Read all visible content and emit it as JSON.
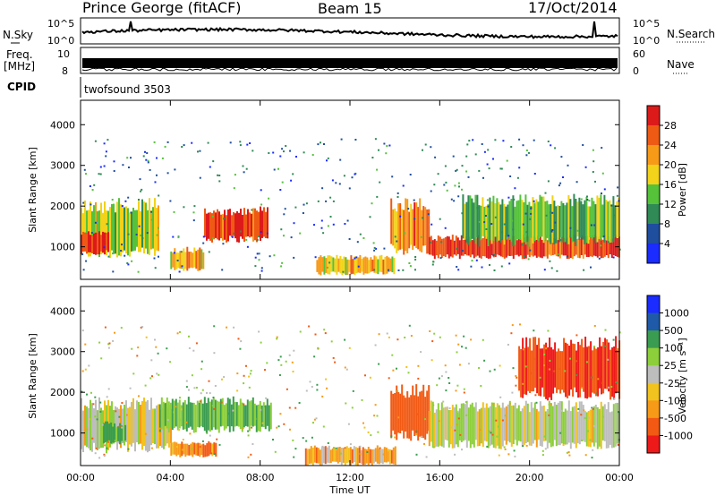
{
  "header": {
    "station": "Prince George (fitACF)",
    "beam": "Beam 15",
    "date": "17/Oct/2014"
  },
  "noise_panel": {
    "left_label": "N.Sky",
    "left_ticks": [
      "10^5",
      "10^0"
    ],
    "right_label": "N.Search",
    "right_ticks": [
      "10^5",
      "10^0"
    ]
  },
  "freq_panel": {
    "left_label_line1": "Freq.",
    "left_label_line2": "[MHz]",
    "left_ticks": [
      "10",
      "8"
    ],
    "right_label": "Nave",
    "right_ticks": [
      "60",
      "0"
    ]
  },
  "cpid": {
    "label": "CPID",
    "value": "twofsound 3503"
  },
  "colors": {
    "power_scale": [
      "#1a2cff",
      "#1f4e9e",
      "#2f8a55",
      "#55c23a",
      "#f2d21a",
      "#f79a18",
      "#ee5a14",
      "#dd1a1a"
    ],
    "velocity_scale": [
      "#ee1a1a",
      "#f25a14",
      "#f79a18",
      "#f2c21e",
      "#bdbdbd",
      "#8ccf3a",
      "#3a9c50",
      "#1f5aa8",
      "#1a2cff"
    ]
  },
  "chart_data": [
    {
      "type": "heatmap",
      "title": "Power",
      "ylabel": "Slant Range [km]",
      "xlabel": "",
      "ylim": [
        200,
        4600
      ],
      "yticks": [
        "1000",
        "2000",
        "3000",
        "4000"
      ],
      "xticks": [
        "00:00",
        "04:00",
        "08:00",
        "12:00",
        "16:00",
        "20:00",
        "00:00"
      ],
      "colorbar": {
        "label": "Power [dB]",
        "ticks": [
          "4",
          "8",
          "12",
          "16",
          "20",
          "24",
          "28"
        ],
        "range": [
          0,
          32
        ]
      },
      "regions": [
        {
          "t_start": 0.0,
          "t_end": 3.5,
          "range_low": 700,
          "range_high": 2200,
          "power_db": 16
        },
        {
          "t_start": 0.0,
          "t_end": 1.2,
          "range_low": 800,
          "range_high": 1400,
          "power_db": 28
        },
        {
          "t_start": 5.5,
          "t_end": 8.3,
          "range_low": 1100,
          "range_high": 2000,
          "power_db": 28
        },
        {
          "t_start": 4.0,
          "t_end": 5.5,
          "range_low": 400,
          "range_high": 1000,
          "power_db": 20
        },
        {
          "t_start": 10.5,
          "t_end": 14.0,
          "range_low": 300,
          "range_high": 800,
          "power_db": 20
        },
        {
          "t_start": 13.8,
          "t_end": 15.5,
          "range_low": 800,
          "range_high": 2200,
          "power_db": 24
        },
        {
          "t_start": 15.5,
          "t_end": 24.0,
          "range_low": 700,
          "range_high": 1300,
          "power_db": 28
        },
        {
          "t_start": 17.0,
          "t_end": 24.0,
          "range_low": 1000,
          "range_high": 2300,
          "power_db": 14
        }
      ]
    },
    {
      "type": "heatmap",
      "title": "Velocity",
      "ylabel": "Slant Range [km]",
      "xlabel": "Time UT",
      "ylim": [
        200,
        4600
      ],
      "yticks": [
        "1000",
        "2000",
        "3000",
        "4000"
      ],
      "xticks": [
        "00:00",
        "04:00",
        "08:00",
        "12:00",
        "16:00",
        "20:00",
        "00:00"
      ],
      "colorbar": {
        "label": "Velocity [m s⁻¹]",
        "ticks": [
          "1000",
          "500",
          "100",
          "25",
          "-25",
          "-100",
          "-500",
          "-1000"
        ],
        "range": [
          -1000,
          1000
        ]
      },
      "regions": [
        {
          "t_start": 0.0,
          "t_end": 4.0,
          "range_low": 500,
          "range_high": 1900,
          "velocity": 0
        },
        {
          "t_start": 1.0,
          "t_end": 2.0,
          "range_low": 700,
          "range_high": 1300,
          "velocity": 150
        },
        {
          "t_start": 3.5,
          "t_end": 8.5,
          "range_low": 1000,
          "range_high": 1900,
          "velocity": 100
        },
        {
          "t_start": 4.0,
          "t_end": 6.0,
          "range_low": 400,
          "range_high": 800,
          "velocity": -100
        },
        {
          "t_start": 10.0,
          "t_end": 14.0,
          "range_low": 200,
          "range_high": 700,
          "velocity": -60
        },
        {
          "t_start": 13.8,
          "t_end": 15.5,
          "range_low": 800,
          "range_high": 2200,
          "velocity": -300
        },
        {
          "t_start": 15.5,
          "t_end": 24.0,
          "range_low": 600,
          "range_high": 1800,
          "velocity": 0
        },
        {
          "t_start": 19.5,
          "t_end": 24.0,
          "range_low": 1800,
          "range_high": 3400,
          "velocity": -500
        }
      ]
    }
  ]
}
